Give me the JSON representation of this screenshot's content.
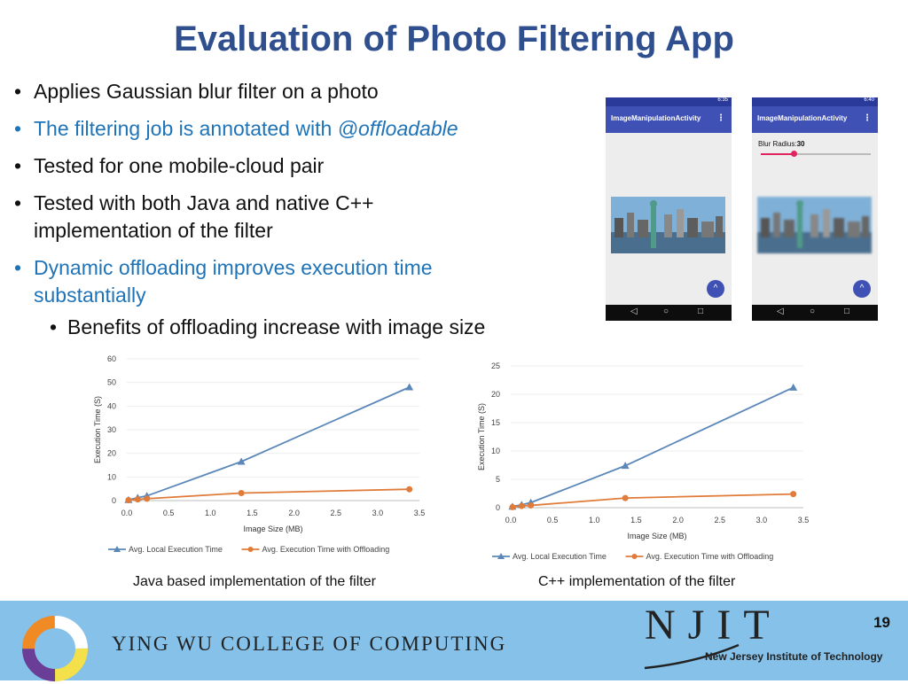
{
  "title": "Evaluation of Photo Filtering App",
  "bullets": [
    {
      "text": "Applies Gaussian blur filter on a photo"
    },
    {
      "text": "The filtering job is annotated with ",
      "em": "@offloadable"
    },
    {
      "text": "Tested for one mobile-cloud pair"
    },
    {
      "text": "Tested with both Java and native C++ implementation of the filter"
    },
    {
      "text": "Dynamic offloading improves execution time substantially"
    },
    {
      "text": "Benefits of offloading increase with image size"
    }
  ],
  "phones": [
    {
      "time": "6:35",
      "app_title": "ImageManipulationActivity",
      "menu": "⋮"
    },
    {
      "time": "6:40",
      "app_title": "ImageManipulationActivity",
      "menu": "⋮",
      "blur_label": "Blur Radius:",
      "blur_value": "30",
      "blur_level": 0.3
    }
  ],
  "chart_data": [
    {
      "type": "line",
      "xlabel": "Image Size (MB)",
      "ylabel": "Execution Time (S)",
      "xlim": [
        0,
        3.5
      ],
      "ylim": [
        0,
        60
      ],
      "xticks": [
        "0.0",
        "0.5",
        "1.0",
        "1.5",
        "2.0",
        "2.5",
        "3.0",
        "3.5"
      ],
      "yticks": [
        "0",
        "10",
        "20",
        "30",
        "40",
        "50",
        "60"
      ],
      "legend": "bottom",
      "series": [
        {
          "name": "Avg. Local Execution Time",
          "color": "#5b87b9",
          "marker": "triangle",
          "x": [
            0.02,
            0.13,
            0.24,
            1.37,
            3.38
          ],
          "y": [
            0.3,
            1.2,
            2.0,
            16.5,
            48.0
          ]
        },
        {
          "name": "Avg. Execution Time with Offloading",
          "color": "#e07b39",
          "marker": "circle",
          "x": [
            0.02,
            0.13,
            0.24,
            1.37,
            3.38
          ],
          "y": [
            0.2,
            0.5,
            0.8,
            3.2,
            4.8
          ]
        }
      ]
    },
    {
      "type": "line",
      "xlabel": "Image Size (MB)",
      "ylabel": "Execution Time (S)",
      "xlim": [
        0,
        3.5
      ],
      "ylim": [
        0,
        25
      ],
      "xticks": [
        "0.0",
        "0.5",
        "1.0",
        "1.5",
        "2.0",
        "2.5",
        "3.0",
        "3.5"
      ],
      "yticks": [
        "0",
        "5",
        "10",
        "15",
        "20",
        "25"
      ],
      "legend": "bottom",
      "series": [
        {
          "name": "Avg. Local Execution Time",
          "color": "#5b87b9",
          "marker": "triangle",
          "x": [
            0.02,
            0.13,
            0.24,
            1.37,
            3.38
          ],
          "y": [
            0.2,
            0.5,
            0.9,
            7.4,
            21.2
          ]
        },
        {
          "name": "Avg. Execution Time with Offloading",
          "color": "#e07b39",
          "marker": "circle",
          "x": [
            0.02,
            0.13,
            0.24,
            1.37,
            3.38
          ],
          "y": [
            0.1,
            0.3,
            0.4,
            1.7,
            2.4
          ]
        }
      ]
    }
  ],
  "captions": [
    "Java based implementation of the filter",
    "C++ implementation of the filter"
  ],
  "footer": {
    "page_number": "19",
    "college": "YING WU COLLEGE OF COMPUTING",
    "njit": "NJIT",
    "njit_full": "New Jersey Institute of Technology"
  },
  "colors": {
    "title": "#2f4f8e",
    "highlight": "#1f73b7",
    "footer_bg": "#85c1e9"
  },
  "icons": [
    "back-icon",
    "home-icon",
    "recent-apps-icon",
    "arrow-up-icon",
    "overflow-menu-icon"
  ]
}
